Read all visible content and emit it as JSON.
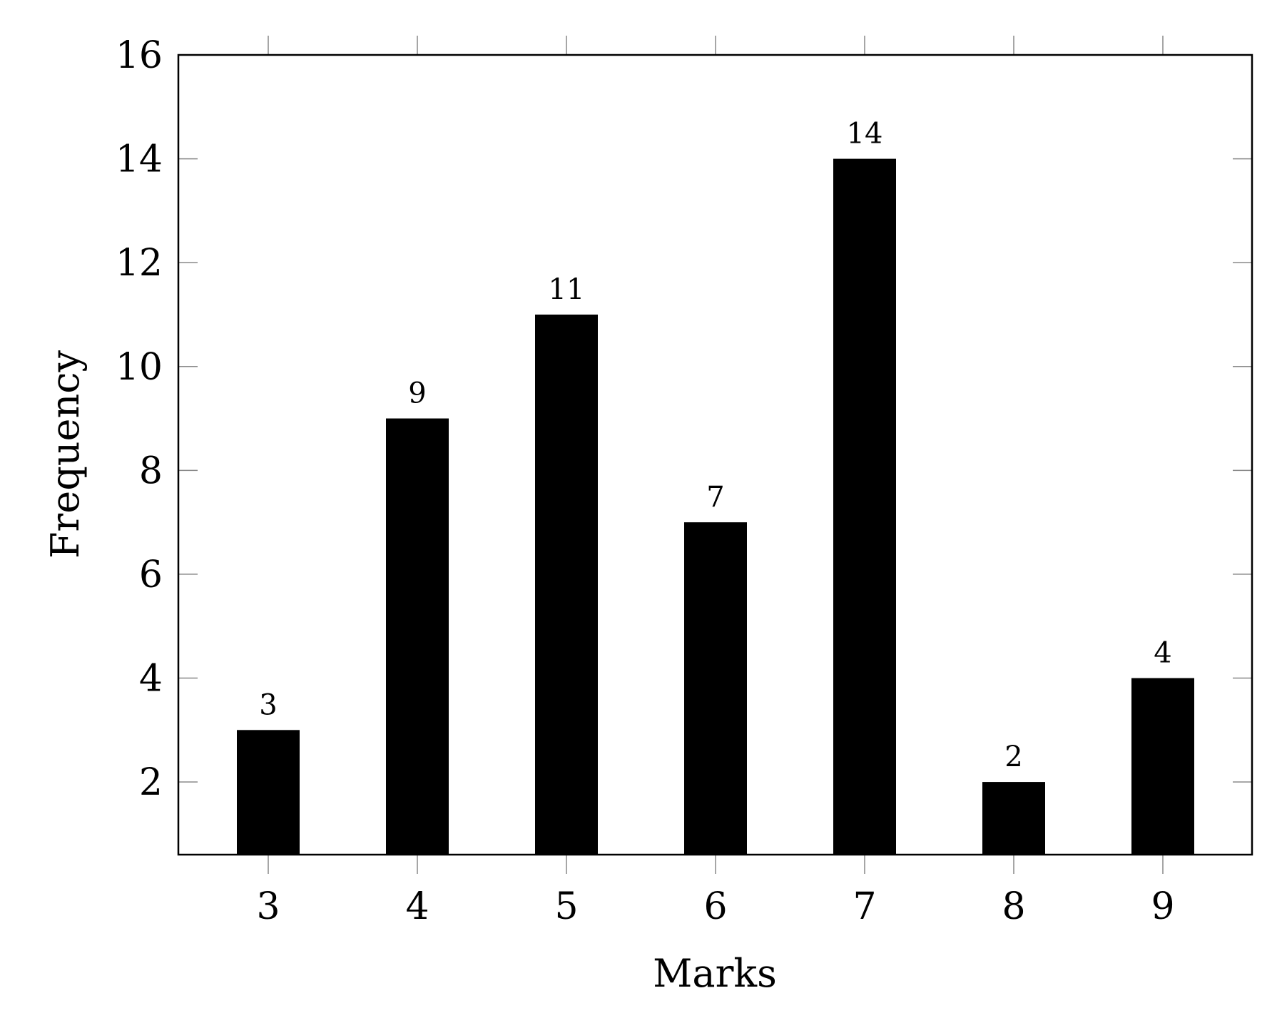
{
  "chart_data": {
    "type": "bar",
    "title": "",
    "xlabel": "Marks",
    "ylabel": "Frequency",
    "categories": [
      "3",
      "4",
      "5",
      "6",
      "7",
      "8",
      "9"
    ],
    "values": [
      3,
      9,
      11,
      7,
      14,
      2,
      4
    ],
    "data_labels": [
      "3",
      "9",
      "11",
      "7",
      "14",
      "2",
      "4"
    ],
    "ylim": [
      0.6,
      16
    ],
    "yticks": [
      2,
      4,
      6,
      8,
      10,
      12,
      14,
      16
    ],
    "ytick_labels": [
      "2",
      "4",
      "6",
      "8",
      "10",
      "12",
      "14",
      "16"
    ],
    "grid": false,
    "legend": "none",
    "bar_color": "#000000",
    "axis_color": "#000000",
    "tick_mark_color": "#888888"
  }
}
